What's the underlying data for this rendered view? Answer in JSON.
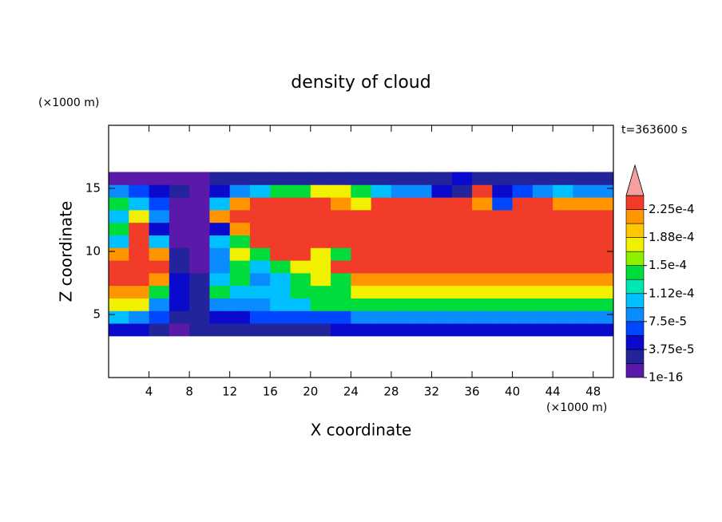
{
  "chart_data": {
    "type": "contour",
    "title": "density of cloud",
    "x_label": "X coordinate",
    "y_label": "Z coordinate",
    "x_unit": "(×1000 m)",
    "y_unit": "(×1000 m)",
    "time_label": "t=363600 s",
    "xlim": [
      0,
      50
    ],
    "ylim": [
      0,
      20
    ],
    "xticks": [
      4,
      8,
      12,
      16,
      20,
      24,
      28,
      32,
      36,
      40,
      44,
      48
    ],
    "yticks": [
      5,
      10,
      15
    ],
    "field": {
      "x": [
        1,
        3,
        5,
        7,
        9,
        11,
        13,
        15,
        17,
        19,
        21,
        23,
        25,
        27,
        29,
        31,
        33,
        35,
        37,
        39,
        41,
        43,
        45,
        47,
        49
      ],
      "z": [
        3.8,
        4.8,
        5.8,
        6.8,
        7.8,
        8.8,
        9.8,
        10.8,
        11.8,
        12.8,
        13.8,
        14.8,
        15.8
      ],
      "values": [
        [
          5e-05,
          5e-05,
          2.5e-05,
          5e-06,
          2.5e-05,
          2.5e-05,
          2.5e-05,
          2.5e-05,
          2.5e-05,
          2.5e-05,
          2.5e-05,
          5e-05,
          5e-05,
          5e-05,
          5e-05,
          5e-05,
          5e-05,
          5e-05,
          5e-05,
          5e-05,
          5e-05,
          5e-05,
          5e-05,
          5e-05,
          5e-05
        ],
        [
          0.00011,
          9e-05,
          7e-05,
          2.5e-05,
          2.5e-05,
          5e-05,
          5e-05,
          7e-05,
          7e-05,
          7e-05,
          7e-05,
          7e-05,
          9e-05,
          9e-05,
          9e-05,
          9e-05,
          9e-05,
          9e-05,
          9e-05,
          9e-05,
          9e-05,
          9e-05,
          9e-05,
          9e-05,
          9e-05
        ],
        [
          0.00018,
          0.00018,
          9e-05,
          5e-05,
          2.5e-05,
          9e-05,
          9e-05,
          9e-05,
          0.00011,
          0.00011,
          0.00014,
          0.00014,
          0.00014,
          0.00014,
          0.00014,
          0.00014,
          0.00014,
          0.00014,
          0.00014,
          0.00014,
          0.00014,
          0.00014,
          0.00014,
          0.00014,
          0.00014
        ],
        [
          0.00021,
          0.00021,
          0.00014,
          5e-05,
          2.5e-05,
          0.00014,
          0.00011,
          0.00011,
          0.00011,
          0.00014,
          0.00014,
          0.00014,
          0.00018,
          0.00018,
          0.00018,
          0.00018,
          0.00018,
          0.00018,
          0.00018,
          0.00018,
          0.00018,
          0.00018,
          0.00018,
          0.00018,
          0.00018
        ],
        [
          0.000235,
          0.000235,
          0.00021,
          5e-05,
          2.5e-05,
          0.00011,
          0.00014,
          9e-05,
          0.00011,
          0.00014,
          0.00018,
          0.00014,
          0.00021,
          0.00021,
          0.00021,
          0.00021,
          0.00021,
          0.00021,
          0.00021,
          0.00021,
          0.00021,
          0.00021,
          0.00021,
          0.00021,
          0.00021
        ],
        [
          0.000235,
          0.000235,
          0.000235,
          2.5e-05,
          5e-06,
          9e-05,
          0.00014,
          0.00011,
          0.00014,
          0.00018,
          0.00018,
          0.000235,
          0.000235,
          0.000235,
          0.000235,
          0.000235,
          0.000235,
          0.000235,
          0.000235,
          0.000235,
          0.000235,
          0.000235,
          0.000235,
          0.000235,
          0.000235
        ],
        [
          0.00021,
          0.000235,
          0.00021,
          2.5e-05,
          5e-06,
          9e-05,
          0.00018,
          0.00014,
          0.000235,
          0.000235,
          0.00018,
          0.00014,
          0.000235,
          0.000235,
          0.000235,
          0.000235,
          0.000235,
          0.000235,
          0.000235,
          0.000235,
          0.000235,
          0.000235,
          0.000235,
          0.000235,
          0.000235
        ],
        [
          0.00011,
          0.000235,
          0.00011,
          5e-06,
          5e-06,
          0.00011,
          0.00014,
          0.000235,
          0.000235,
          0.000235,
          0.000235,
          0.000235,
          0.000235,
          0.000235,
          0.000235,
          0.000235,
          0.000235,
          0.000235,
          0.000235,
          0.000235,
          0.000235,
          0.000235,
          0.000235,
          0.000235,
          0.000235
        ],
        [
          0.00014,
          0.000235,
          5e-05,
          5e-06,
          5e-06,
          5e-05,
          0.00021,
          0.000235,
          0.000235,
          0.000235,
          0.000235,
          0.000235,
          0.000235,
          0.000235,
          0.000235,
          0.000235,
          0.000235,
          0.000235,
          0.000235,
          0.000235,
          0.000235,
          0.000235,
          0.000235,
          0.000235,
          0.000235
        ],
        [
          0.00011,
          0.00018,
          9e-05,
          5e-06,
          5e-06,
          0.00021,
          0.000235,
          0.000235,
          0.000235,
          0.000235,
          0.000235,
          0.000235,
          0.000235,
          0.000235,
          0.000235,
          0.000235,
          0.000235,
          0.000235,
          0.000235,
          0.000235,
          0.000235,
          0.000235,
          0.000235,
          0.000235,
          0.000235
        ],
        [
          0.00014,
          0.00011,
          7e-05,
          5e-06,
          5e-06,
          0.00011,
          0.00021,
          0.000235,
          0.000235,
          0.000235,
          0.000235,
          0.00021,
          0.00018,
          0.000235,
          0.000235,
          0.000235,
          0.000235,
          0.000235,
          0.00021,
          7e-05,
          0.000235,
          0.000235,
          0.00021,
          0.00021,
          0.00021
        ],
        [
          9e-05,
          7e-05,
          5e-05,
          2.5e-05,
          5e-06,
          5e-05,
          9e-05,
          0.00011,
          0.00014,
          0.00014,
          0.00018,
          0.00018,
          0.00014,
          0.00011,
          9e-05,
          9e-05,
          5e-05,
          2.5e-05,
          0.000235,
          5e-05,
          7e-05,
          9e-05,
          0.00011,
          9e-05,
          9e-05
        ],
        [
          5e-06,
          5e-06,
          5e-06,
          5e-06,
          5e-06,
          2.5e-05,
          2.5e-05,
          2.5e-05,
          2.5e-05,
          2.5e-05,
          2.5e-05,
          2.5e-05,
          2.5e-05,
          2.5e-05,
          2.5e-05,
          2.5e-05,
          2.5e-05,
          5e-05,
          2.5e-05,
          2.5e-05,
          2.5e-05,
          2.5e-05,
          2.5e-05,
          2.5e-05,
          2.5e-05
        ]
      ]
    },
    "colorbar": {
      "clim": [
        0,
        0.00024375
      ],
      "levels": [
        0,
        1.875e-05,
        3.75e-05,
        5.625e-05,
        7.5e-05,
        9.375e-05,
        0.0001125,
        0.00013125,
        0.00015,
        0.00016875,
        0.0001875,
        0.00020625,
        0.000225
      ],
      "colors": [
        "#5a19a8",
        "#23239b",
        "#0a0acd",
        "#0046ff",
        "#0a8cff",
        "#00c0ff",
        "#00e6b4",
        "#00dc3c",
        "#8cf000",
        "#f0f000",
        "#ffc800",
        "#ff9600",
        "#f03c28"
      ],
      "overflow_color": "#f4a0a0",
      "ticks": [
        {
          "value": 1e-16,
          "label": "1e-16"
        },
        {
          "value": 3.75e-05,
          "label": "3.75e-5"
        },
        {
          "value": 7.5e-05,
          "label": "7.5e-5"
        },
        {
          "value": 0.0001125,
          "label": "1.12e-4"
        },
        {
          "value": 0.00015,
          "label": "1.5e-4"
        },
        {
          "value": 0.0001875,
          "label": "1.88e-4"
        },
        {
          "value": 0.000225,
          "label": "2.25e-4"
        }
      ]
    }
  }
}
